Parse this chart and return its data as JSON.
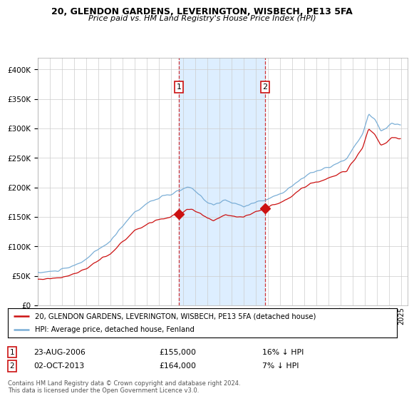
{
  "title1": "20, GLENDON GARDENS, LEVERINGTON, WISBECH, PE13 5FA",
  "title2": "Price paid vs. HM Land Registry's House Price Index (HPI)",
  "sale1_date": "23-AUG-2006",
  "sale1_price": 155000,
  "sale2_date": "02-OCT-2013",
  "sale2_price": 164000,
  "sale1_pct": "16% ↓ HPI",
  "sale2_pct": "7% ↓ HPI",
  "sale1_year": 2006.646,
  "sale2_year": 2013.751,
  "legend_property": "20, GLENDON GARDENS, LEVERINGTON, WISBECH, PE13 5FA (detached house)",
  "legend_hpi": "HPI: Average price, detached house, Fenland",
  "footer": "Contains HM Land Registry data © Crown copyright and database right 2024.\nThis data is licensed under the Open Government Licence v3.0.",
  "hpi_color": "#7aaed6",
  "property_color": "#cc1111",
  "shade_color": "#ddeeff",
  "background_color": "#ffffff",
  "grid_color": "#cccccc",
  "ylim": [
    0,
    420000
  ],
  "xlim_start": 1995.0,
  "xlim_end": 2025.5
}
